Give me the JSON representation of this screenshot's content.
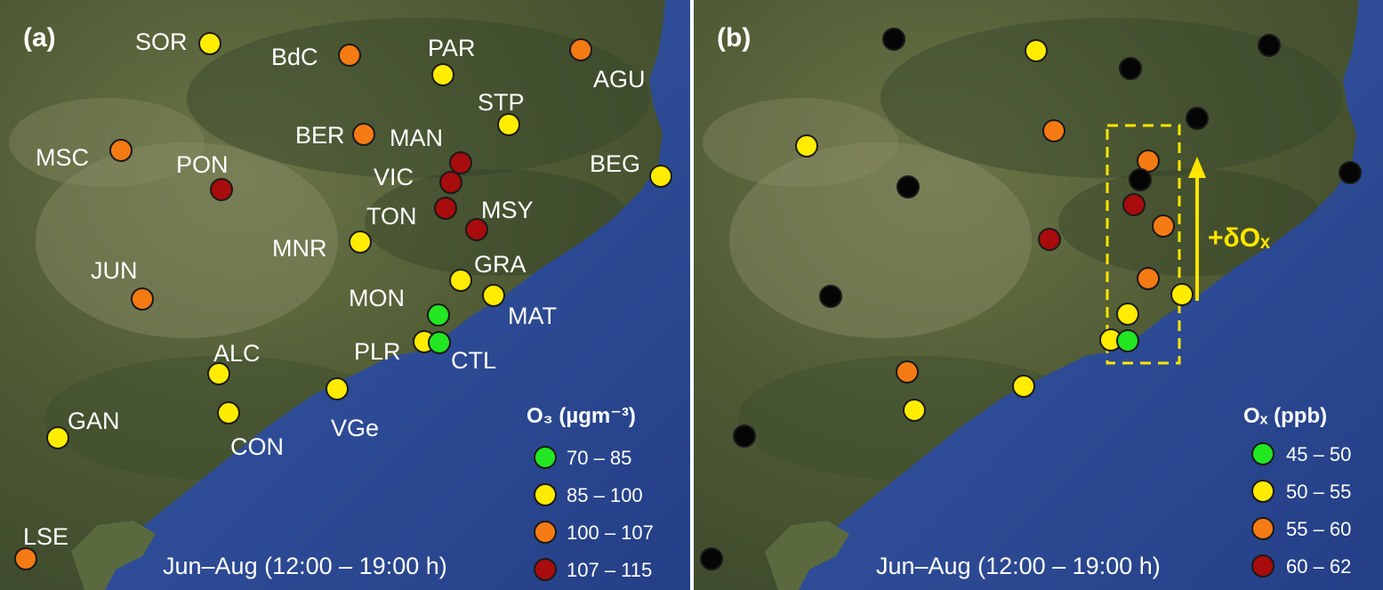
{
  "colors": {
    "green": "#22e622",
    "yellow": "#ffec00",
    "orange": "#f47a14",
    "red": "#a80c0c",
    "black": "#050505",
    "sea": "#2f4f9e",
    "land": "#5d6640",
    "highlight": "#ffe500"
  },
  "panel_a": {
    "tag": "(a)",
    "legend_title": "O₃ (µgm⁻³)",
    "legend": [
      {
        "label": "70 – 85",
        "color": "green"
      },
      {
        "label": "85 – 100",
        "color": "yellow"
      },
      {
        "label": "100 – 107",
        "color": "orange"
      },
      {
        "label": "107 – 115",
        "color": "red"
      }
    ],
    "period": "Jun–Aug (12:00 – 19:00 h)",
    "stations": [
      {
        "name": "SOR",
        "color": "yellow"
      },
      {
        "name": "BdC",
        "color": "orange"
      },
      {
        "name": "PAR",
        "color": "yellow"
      },
      {
        "name": "AGU",
        "color": "orange"
      },
      {
        "name": "STP",
        "color": "yellow"
      },
      {
        "name": "BER",
        "color": "orange"
      },
      {
        "name": "MAN",
        "color": "red"
      },
      {
        "name": "MSC",
        "color": "orange"
      },
      {
        "name": "PON",
        "color": "red"
      },
      {
        "name": "VIC",
        "color": "red"
      },
      {
        "name": "BEG",
        "color": "yellow"
      },
      {
        "name": "TON",
        "color": "red"
      },
      {
        "name": "MSY",
        "color": "red"
      },
      {
        "name": "MNR",
        "color": "yellow"
      },
      {
        "name": "JUN",
        "color": "orange"
      },
      {
        "name": "GRA",
        "color": "yellow"
      },
      {
        "name": "MON",
        "color": "green"
      },
      {
        "name": "MAT",
        "color": "yellow"
      },
      {
        "name": "ALC",
        "color": "yellow"
      },
      {
        "name": "PLR",
        "color": "yellow"
      },
      {
        "name": "CTL",
        "color": "green"
      },
      {
        "name": "VGe",
        "color": "yellow"
      },
      {
        "name": "GAN",
        "color": "yellow"
      },
      {
        "name": "CON",
        "color": "yellow"
      },
      {
        "name": "LSE",
        "color": "orange"
      }
    ]
  },
  "panel_b": {
    "tag": "(b)",
    "legend_title": "Oₓ (ppb)",
    "legend": [
      {
        "label": "45 – 50",
        "color": "green"
      },
      {
        "label": "50 – 55",
        "color": "yellow"
      },
      {
        "label": "55 – 60",
        "color": "orange"
      },
      {
        "label": "60 – 62",
        "color": "red"
      }
    ],
    "period": "Jun–Aug (12:00 – 19:00 h)",
    "arrow_label": "+δOₓ",
    "stations": [
      {
        "color": "black"
      },
      {
        "color": "yellow"
      },
      {
        "color": "black"
      },
      {
        "color": "black"
      },
      {
        "color": "black"
      },
      {
        "color": "orange"
      },
      {
        "color": "yellow"
      },
      {
        "color": "orange"
      },
      {
        "color": "black"
      },
      {
        "color": "black"
      },
      {
        "color": "black"
      },
      {
        "color": "red"
      },
      {
        "color": "orange"
      },
      {
        "color": "red"
      },
      {
        "color": "orange"
      },
      {
        "color": "black"
      },
      {
        "color": "yellow"
      },
      {
        "color": "yellow"
      },
      {
        "color": "yellow"
      },
      {
        "color": "green"
      },
      {
        "color": "orange"
      },
      {
        "color": "yellow"
      },
      {
        "color": "yellow"
      },
      {
        "color": "black"
      },
      {
        "color": "black"
      }
    ]
  }
}
